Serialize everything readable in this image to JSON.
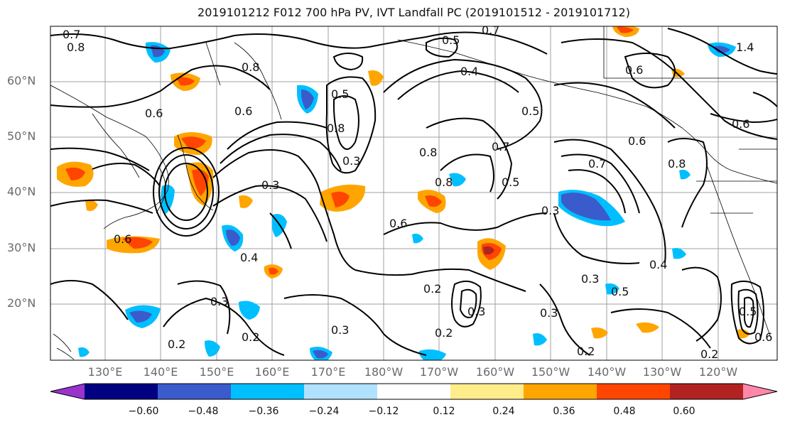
{
  "title": "2019101212 F012 700 hPa PV, IVT Landfall PC (2019101512 - 2019101712)",
  "map": {
    "lat_labels": [
      "60°N",
      "50°N",
      "40°N",
      "30°N",
      "20°N"
    ],
    "lon_labels": [
      "130°E",
      "140°E",
      "150°E",
      "160°E",
      "170°E",
      "180°W",
      "170°W",
      "160°W",
      "150°W",
      "140°W",
      "130°W",
      "120°W"
    ],
    "contour_labels": [
      "0.7",
      "0.8",
      "0.5",
      "0.6",
      "0.4",
      "0.5",
      "0.8",
      "0.6",
      "0.6",
      "0.7",
      "0.5",
      "1.4",
      "0.6",
      "0.8",
      "0.3",
      "0.8",
      "0.7",
      "0.5",
      "0.8",
      "0.6",
      "0.3",
      "0.7",
      "0.6",
      "0.8",
      "0.3",
      "0.6",
      "0.4",
      "0.3",
      "0.2",
      "0.3",
      "0.2",
      "0.3",
      "0.3",
      "0.4",
      "0.5",
      "0.2",
      "0.2",
      "0.2",
      "0.2",
      "0.3",
      "0.5",
      "0.6"
    ]
  },
  "colorbar": {
    "colors": [
      "#9933cc",
      "#000080",
      "#3a5bcc",
      "#00bfff",
      "#b0e2ff",
      "#ffffff",
      "#ffec8b",
      "#ffa500",
      "#ff4500",
      "#b22222",
      "#ff88aa"
    ],
    "tick_labels": [
      "−0.60",
      "−0.48",
      "−0.36",
      "−0.24",
      "−0.12",
      "0.12",
      "0.24",
      "0.36",
      "0.48",
      "0.60"
    ]
  }
}
